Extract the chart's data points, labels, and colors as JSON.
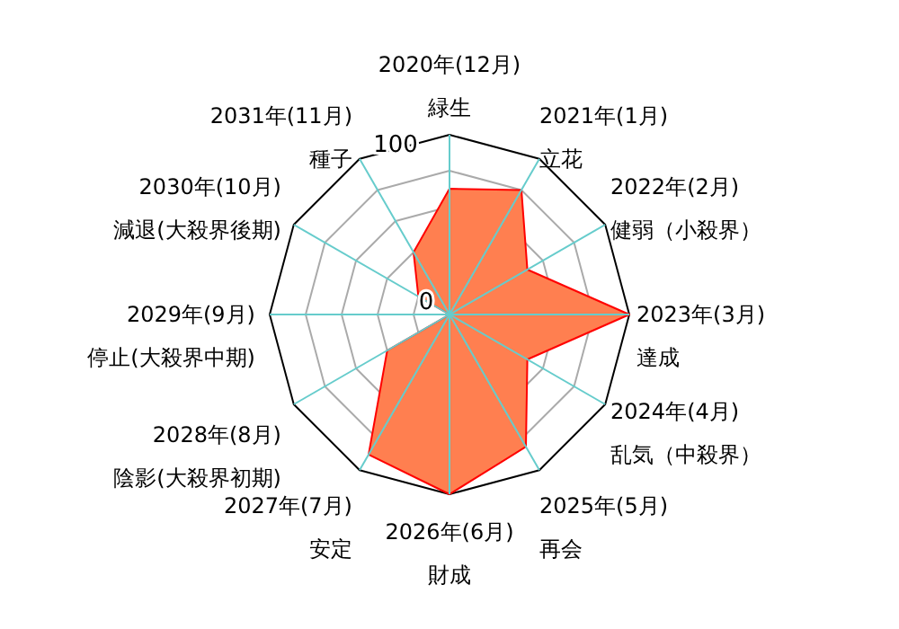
{
  "chart_data": {
    "type": "radar",
    "categories": [
      "2020年(12月)\n緑生",
      "2021年(1月)\n立花",
      "2022年(2月)\n健弱（小殺界）",
      "2023年(3月)\n達成",
      "2024年(4月)\n乱気（中殺界）",
      "2025年(5月)\n再会",
      "2026年(6月)\n財成",
      "2027年(7月)\n安定",
      "2028年(8月)\n陰影(大殺界初期)",
      "2029年(9月)\n停止(大殺界中期)",
      "2030年(10月)\n減退(大殺界後期)",
      "2031年(11月)\n種子"
    ],
    "series": [
      {
        "color": "#ff7f50",
        "values": [
          70,
          80,
          50,
          100,
          50,
          85,
          100,
          90,
          40,
          0,
          20,
          40
        ]
      }
    ],
    "ylim": [
      0,
      100
    ],
    "yticks": [
      0,
      100
    ],
    "grid": true
  }
}
